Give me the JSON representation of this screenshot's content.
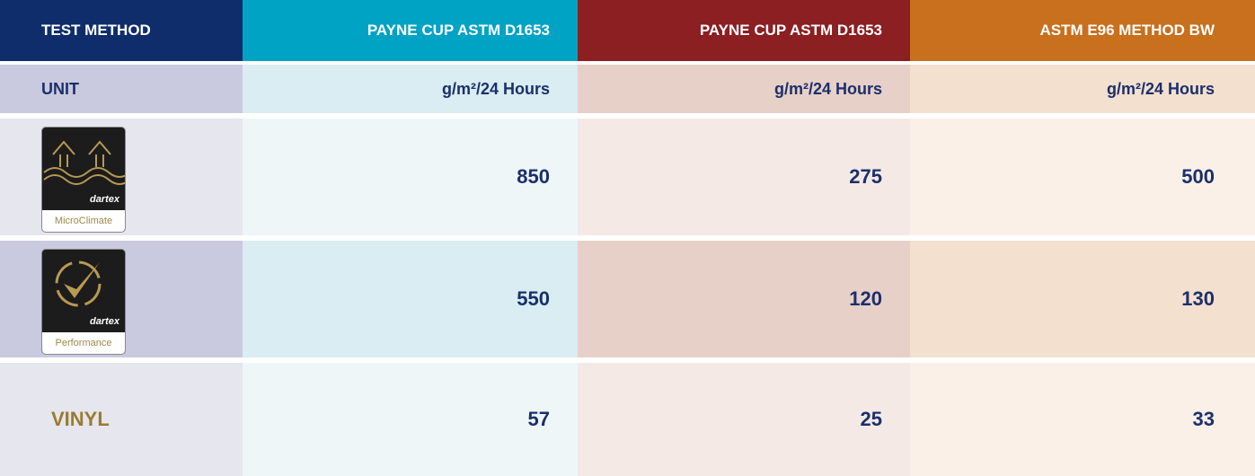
{
  "table": {
    "header": [
      "TEST METHOD",
      "PAYNE CUP ASTM D1653",
      "PAYNE CUP ASTM D1653",
      "ASTM E96 METHOD BW"
    ],
    "rows": [
      {
        "label": "UNIT",
        "values": [
          "g/m²/24 Hours",
          "g/m²/24 Hours",
          "g/m²/24 Hours"
        ]
      },
      {
        "logo": {
          "brand": "dartex",
          "name": "MicroClimate"
        },
        "values": [
          850,
          275,
          500
        ]
      },
      {
        "logo": {
          "brand": "dartex",
          "name": "Performance"
        },
        "values": [
          550,
          120,
          130
        ]
      },
      {
        "label": "VINYL",
        "values": [
          57,
          25,
          33
        ]
      }
    ]
  }
}
